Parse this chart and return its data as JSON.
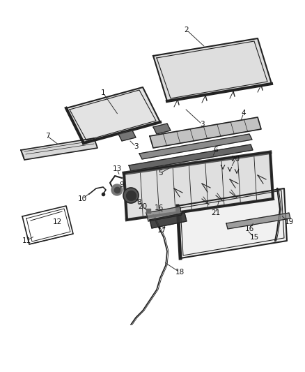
{
  "bg_color": "#ffffff",
  "line_color": "#333333",
  "label_color": "#111111",
  "dark_color": "#222222",
  "gray1": "#c0c0c0",
  "gray2": "#a8a8a8",
  "gray3": "#e0e0e0",
  "gray4": "#888888"
}
